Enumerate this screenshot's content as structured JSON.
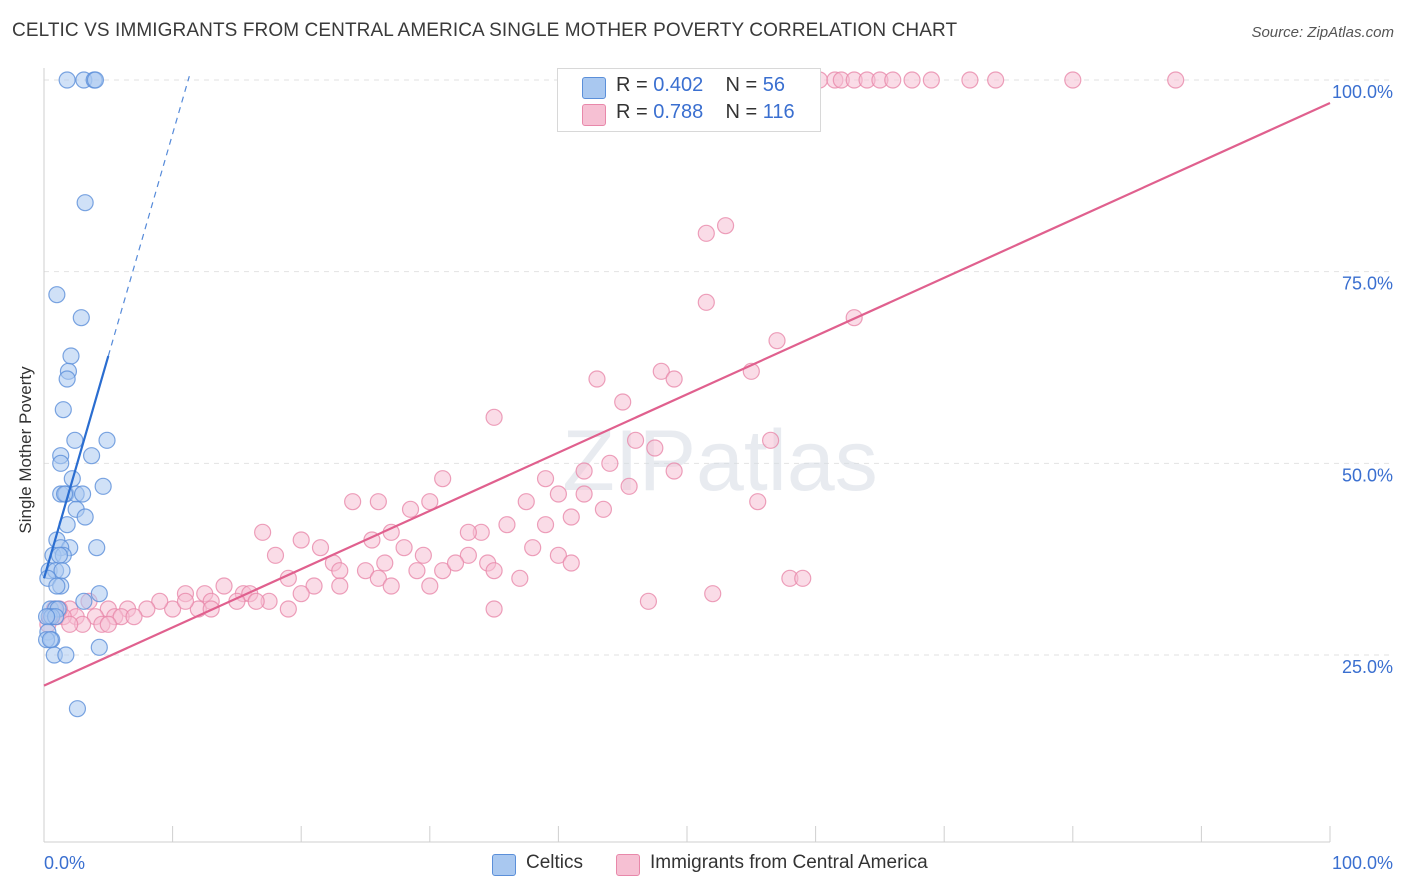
{
  "title": "CELTIC VS IMMIGRANTS FROM CENTRAL AMERICA SINGLE MOTHER POVERTY CORRELATION CHART",
  "source": "Source: ZipAtlas.com",
  "watermark": "ZIPatlas",
  "legend": {
    "rows": [
      {
        "r_label": "R =",
        "r_value": "0.402",
        "n_label": "N =",
        "n_value": "56"
      },
      {
        "r_label": "R =",
        "r_value": "0.788",
        "n_label": "N =",
        "n_value": "116"
      }
    ]
  },
  "colors": {
    "celtic_fill": "#a9c8f0",
    "celtic_stroke": "#5b8fd9",
    "celtic_line": "#2a6dd0",
    "immig_fill": "#f6c0d3",
    "immig_stroke": "#e888aa",
    "immig_line": "#e0608e",
    "axis_label": "#3a6fd0",
    "grid": "#e2e2e2"
  },
  "chart_data": {
    "type": "scatter",
    "title": "CELTIC VS IMMIGRANTS FROM CENTRAL AMERICA SINGLE MOTHER POVERTY CORRELATION CHART",
    "xlabel": "",
    "ylabel": "Single Mother Poverty",
    "xlim": [
      0,
      100
    ],
    "ylim": [
      0,
      103
    ],
    "x_tick_labels": [
      "0.0%",
      "100.0%"
    ],
    "y_tick_labels": [
      "25.0%",
      "50.0%",
      "75.0%",
      "100.0%"
    ],
    "y_ticks": [
      25,
      50,
      75,
      100
    ],
    "grid": true,
    "legend_position": "bottom",
    "series": [
      {
        "name": "Celtics",
        "trend": {
          "x0": 0.0,
          "y0": 35.0,
          "x1": 5.0,
          "y1": 64.0,
          "dashed_to_x": 11.3,
          "dashed_to_y": 100.5
        },
        "points": [
          [
            1.8,
            100
          ],
          [
            3.1,
            100
          ],
          [
            3.9,
            100
          ],
          [
            4.0,
            100
          ],
          [
            3.2,
            84
          ],
          [
            1.0,
            72
          ],
          [
            2.9,
            69
          ],
          [
            2.1,
            64
          ],
          [
            1.9,
            62
          ],
          [
            1.8,
            61
          ],
          [
            1.5,
            57
          ],
          [
            4.9,
            53
          ],
          [
            2.4,
            53
          ],
          [
            1.3,
            51
          ],
          [
            3.7,
            51
          ],
          [
            1.3,
            50
          ],
          [
            2.2,
            48
          ],
          [
            4.6,
            47
          ],
          [
            1.3,
            46
          ],
          [
            1.7,
            46
          ],
          [
            2.5,
            46
          ],
          [
            1.6,
            46
          ],
          [
            3.0,
            46
          ],
          [
            2.5,
            44
          ],
          [
            3.2,
            43
          ],
          [
            1.8,
            42
          ],
          [
            1.0,
            40
          ],
          [
            2.0,
            39
          ],
          [
            4.1,
            39
          ],
          [
            1.3,
            39
          ],
          [
            0.7,
            38
          ],
          [
            1.5,
            38
          ],
          [
            1.2,
            38
          ],
          [
            0.4,
            36
          ],
          [
            0.9,
            36
          ],
          [
            1.4,
            36
          ],
          [
            0.3,
            35
          ],
          [
            1.3,
            34
          ],
          [
            1.0,
            34
          ],
          [
            4.3,
            33
          ],
          [
            3.1,
            32
          ],
          [
            0.5,
            31
          ],
          [
            0.9,
            31
          ],
          [
            1.1,
            31
          ],
          [
            0.4,
            30
          ],
          [
            0.6,
            30
          ],
          [
            0.9,
            30
          ],
          [
            0.2,
            30
          ],
          [
            0.3,
            28
          ],
          [
            0.6,
            27
          ],
          [
            0.2,
            27
          ],
          [
            0.5,
            27
          ],
          [
            0.8,
            25
          ],
          [
            1.7,
            25
          ],
          [
            4.3,
            26
          ],
          [
            2.6,
            18
          ]
        ]
      },
      {
        "name": "Immigrants from Central America",
        "trend": {
          "x0": 0.0,
          "y0": 21.0,
          "x1": 100.0,
          "y1": 97.0
        },
        "points": [
          [
            60.3,
            100
          ],
          [
            61.5,
            100
          ],
          [
            62.0,
            100
          ],
          [
            63.0,
            100
          ],
          [
            64.0,
            100
          ],
          [
            65.0,
            100
          ],
          [
            66.0,
            100
          ],
          [
            67.5,
            100
          ],
          [
            69.0,
            100
          ],
          [
            72.0,
            100
          ],
          [
            74.0,
            100
          ],
          [
            80.0,
            100
          ],
          [
            88.0,
            100
          ],
          [
            51.5,
            80
          ],
          [
            53.0,
            81
          ],
          [
            51.5,
            71
          ],
          [
            57.0,
            66
          ],
          [
            63.0,
            69
          ],
          [
            48.0,
            62
          ],
          [
            49.0,
            61
          ],
          [
            55.0,
            62
          ],
          [
            43.0,
            61
          ],
          [
            45.0,
            58
          ],
          [
            35.0,
            56
          ],
          [
            56.5,
            53
          ],
          [
            46.0,
            53
          ],
          [
            47.5,
            52
          ],
          [
            44.0,
            50
          ],
          [
            49.0,
            49
          ],
          [
            42.0,
            49
          ],
          [
            39.0,
            48
          ],
          [
            31.0,
            48
          ],
          [
            45.5,
            47
          ],
          [
            40.0,
            46
          ],
          [
            42.0,
            46
          ],
          [
            26.0,
            45
          ],
          [
            30.0,
            45
          ],
          [
            37.5,
            45
          ],
          [
            24.0,
            45
          ],
          [
            28.5,
            44
          ],
          [
            43.5,
            44
          ],
          [
            55.5,
            45
          ],
          [
            41.0,
            43
          ],
          [
            39.0,
            42
          ],
          [
            36.0,
            42
          ],
          [
            34.0,
            41
          ],
          [
            33.0,
            41
          ],
          [
            27.0,
            41
          ],
          [
            17.0,
            41
          ],
          [
            20.0,
            40
          ],
          [
            21.5,
            39
          ],
          [
            25.5,
            40
          ],
          [
            28.0,
            39
          ],
          [
            29.5,
            38
          ],
          [
            38.0,
            39
          ],
          [
            40.0,
            38
          ],
          [
            33.0,
            38
          ],
          [
            34.5,
            37
          ],
          [
            18.0,
            38
          ],
          [
            26.5,
            37
          ],
          [
            22.5,
            37
          ],
          [
            23.0,
            36
          ],
          [
            25.0,
            36
          ],
          [
            31.0,
            36
          ],
          [
            32.0,
            37
          ],
          [
            35.0,
            36
          ],
          [
            37.0,
            35
          ],
          [
            26.0,
            35
          ],
          [
            27.0,
            34
          ],
          [
            29.0,
            36
          ],
          [
            30.0,
            34
          ],
          [
            19.0,
            35
          ],
          [
            21.0,
            34
          ],
          [
            23.0,
            34
          ],
          [
            14.0,
            34
          ],
          [
            15.5,
            33
          ],
          [
            16.0,
            33
          ],
          [
            20.0,
            33
          ],
          [
            11.0,
            33
          ],
          [
            12.5,
            33
          ],
          [
            13.0,
            32
          ],
          [
            15.0,
            32
          ],
          [
            17.5,
            32
          ],
          [
            12.0,
            31
          ],
          [
            13.0,
            31
          ],
          [
            10.0,
            31
          ],
          [
            11.0,
            32
          ],
          [
            9.0,
            32
          ],
          [
            8.0,
            31
          ],
          [
            6.5,
            31
          ],
          [
            5.0,
            31
          ],
          [
            2.0,
            31
          ],
          [
            3.5,
            32
          ],
          [
            4.0,
            30
          ],
          [
            5.5,
            30
          ],
          [
            6.0,
            30
          ],
          [
            7.0,
            30
          ],
          [
            2.5,
            30
          ],
          [
            3.0,
            29
          ],
          [
            4.5,
            29
          ],
          [
            5.0,
            29
          ],
          [
            1.0,
            30
          ],
          [
            1.5,
            30
          ],
          [
            2.0,
            29
          ],
          [
            0.5,
            30
          ],
          [
            0.3,
            29
          ],
          [
            0.8,
            31
          ],
          [
            1.2,
            31
          ],
          [
            35.0,
            31
          ],
          [
            52.0,
            33
          ],
          [
            58.0,
            35
          ],
          [
            59.0,
            35
          ],
          [
            47.0,
            32
          ],
          [
            41.0,
            37
          ],
          [
            16.5,
            32
          ],
          [
            19.0,
            31
          ]
        ]
      }
    ]
  }
}
